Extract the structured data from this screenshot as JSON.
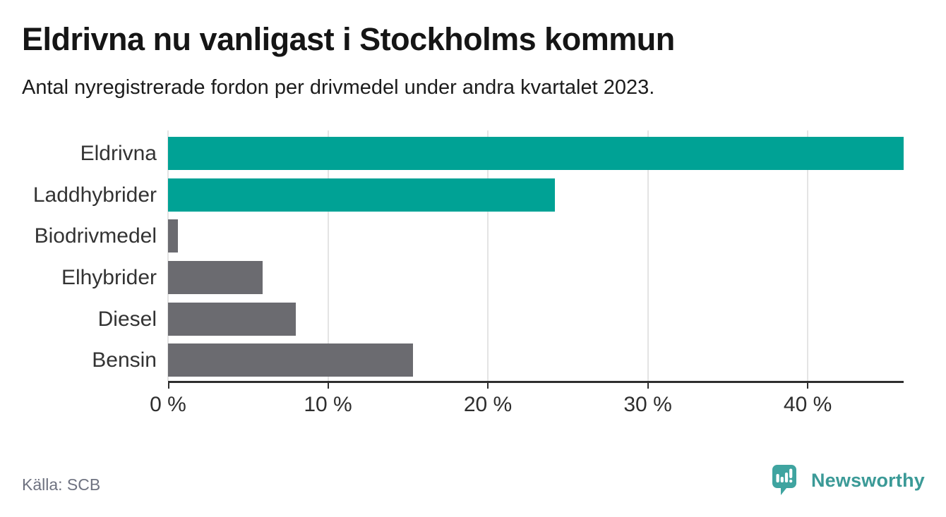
{
  "header": {
    "title": "Eldrivna nu vanligast i Stockholms kommun",
    "subtitle": "Antal nyregistrerade fordon per drivmedel under andra kvartalet 2023."
  },
  "footer": {
    "source": "Källa: SCB",
    "brand": "Newsworthy",
    "brand_icon": "newsworthy-speech-bubble-chart-icon"
  },
  "colors": {
    "highlight": "#00a295",
    "default_bar": "#6b6b70",
    "axis": "#2e2e2e",
    "gridline": "#e4e4e4",
    "brand_teal": "#3b9a97",
    "title_text": "#151515",
    "label_text": "#333333",
    "source_text": "#6e7280"
  },
  "chart_data": {
    "type": "bar",
    "orientation": "horizontal",
    "title": "Eldrivna nu vanligast i Stockholms kommun",
    "subtitle": "Antal nyregistrerade fordon per drivmedel under andra kvartalet 2023.",
    "categories": [
      "Eldrivna",
      "Laddhybrider",
      "Biodrivmedel",
      "Elhybrider",
      "Diesel",
      "Bensin"
    ],
    "values": [
      46.0,
      24.2,
      0.6,
      5.9,
      8.0,
      15.3
    ],
    "unit": "%",
    "bar_colors": [
      "#00a295",
      "#00a295",
      "#6b6b70",
      "#6b6b70",
      "#6b6b70",
      "#6b6b70"
    ],
    "x_ticks": [
      0,
      10,
      20,
      30,
      40
    ],
    "x_tick_labels": [
      "0 %",
      "10 %",
      "20 %",
      "30 %",
      "40 %"
    ],
    "xlim": [
      0,
      46
    ],
    "xlabel": "",
    "ylabel": "",
    "grid": true,
    "legend": false,
    "source": "Källa: SCB"
  }
}
